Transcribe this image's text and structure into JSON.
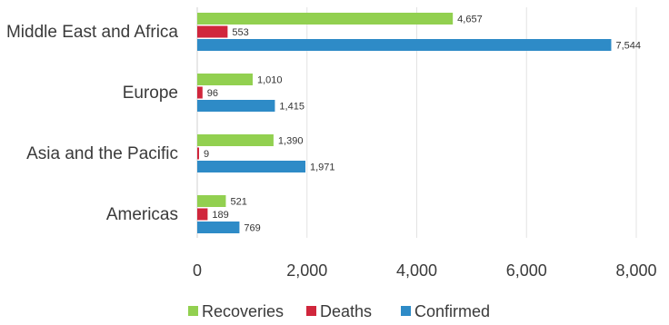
{
  "chart_data": {
    "type": "bar",
    "orientation": "horizontal",
    "categories": [
      "Middle East and Africa",
      "Europe",
      "Asia and the Pacific",
      "Americas"
    ],
    "series": [
      {
        "name": "Recoveries",
        "color": "#92d050",
        "values": [
          4657,
          1010,
          1390,
          521
        ],
        "labels": [
          "4,657",
          "1,010",
          "1,390",
          "521"
        ]
      },
      {
        "name": "Deaths",
        "color": "#d0263c",
        "values": [
          553,
          96,
          9,
          189
        ],
        "labels": [
          "553",
          "96",
          "9",
          "189"
        ]
      },
      {
        "name": "Confirmed",
        "color": "#2e8bc7",
        "values": [
          7544,
          1415,
          1971,
          769
        ],
        "labels": [
          "7,544",
          "1,415",
          "1,971",
          "769"
        ]
      }
    ],
    "xlim": [
      0,
      8000
    ],
    "ticks": [
      0,
      2000,
      4000,
      6000,
      8000
    ],
    "tick_labels": [
      "0",
      "2,000",
      "4,000",
      "6,000",
      "8,000"
    ],
    "grid": true,
    "legend_position": "bottom"
  }
}
